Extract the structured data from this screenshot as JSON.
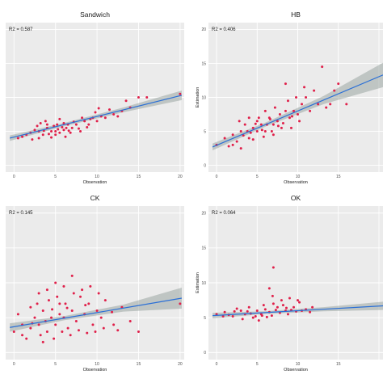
{
  "chart_data": [
    {
      "type": "scatter",
      "title": "Sandwich",
      "annotation": "R2 = 0.587",
      "xlabel": "Observation",
      "ylabel": "",
      "xlim": [
        -1,
        20.5
      ],
      "ylim": [
        -1,
        21
      ],
      "xticks": [
        "0",
        "5",
        "10",
        "15",
        "20"
      ],
      "yticks": [
        "0",
        "5",
        "10",
        "15",
        "20"
      ],
      "fit": {
        "x0": -0.5,
        "y0": 4.0,
        "x1": 20.2,
        "y1": 10.3
      },
      "band_halfwidth": [
        0.4,
        0.25,
        0.35,
        0.7
      ],
      "points": [
        [
          3,
          5
        ],
        [
          3.5,
          4.5
        ],
        [
          4,
          5.5
        ],
        [
          4.5,
          5
        ],
        [
          5,
          5
        ],
        [
          5.2,
          6
        ],
        [
          5.5,
          4.8
        ],
        [
          6,
          5.2
        ],
        [
          6.3,
          5.5
        ],
        [
          6.5,
          6
        ],
        [
          7,
          5.5
        ],
        [
          7.5,
          6
        ],
        [
          8,
          5
        ],
        [
          8.5,
          6.5
        ],
        [
          9,
          6
        ],
        [
          9.5,
          7
        ],
        [
          10,
          6.5
        ],
        [
          2,
          4.8
        ],
        [
          2.5,
          5.2
        ],
        [
          1,
          4.2
        ],
        [
          0.5,
          4
        ],
        [
          1.5,
          4.5
        ],
        [
          3.2,
          6.2
        ],
        [
          4.2,
          4.6
        ],
        [
          4.8,
          5.8
        ],
        [
          5.8,
          5.6
        ],
        [
          6.8,
          4.8
        ],
        [
          7.2,
          6.4
        ],
        [
          8.2,
          7
        ],
        [
          9.2,
          6.8
        ],
        [
          10.5,
          7.2
        ],
        [
          11,
          7
        ],
        [
          12,
          7.5
        ],
        [
          13,
          8
        ],
        [
          13.5,
          9.5
        ],
        [
          14,
          8.5
        ],
        [
          15,
          10
        ],
        [
          16,
          10
        ],
        [
          20,
          10.5
        ],
        [
          3.8,
          6.5
        ],
        [
          5.5,
          6.8
        ],
        [
          6.2,
          4.2
        ],
        [
          4.5,
          4.1
        ],
        [
          2.8,
          5.8
        ],
        [
          7.8,
          5.4
        ],
        [
          9.8,
          7.8
        ],
        [
          11.5,
          8.2
        ],
        [
          3,
          4
        ],
        [
          5,
          4.5
        ],
        [
          6,
          6.2
        ],
        [
          4,
          6
        ],
        [
          8.8,
          5.6
        ],
        [
          12.5,
          7.2
        ],
        [
          10.2,
          8.4
        ],
        [
          2.2,
          3.8
        ],
        [
          3.6,
          5.1
        ],
        [
          6.6,
          5.1
        ],
        [
          5.3,
          5.3
        ]
      ]
    },
    {
      "type": "scatter",
      "title": "HB",
      "annotation": "R2 = 0.406",
      "xlabel": "Observation",
      "ylabel": "Estimation",
      "xlim": [
        -1,
        20.5
      ],
      "ylim": [
        -1,
        21
      ],
      "xticks": [
        "0",
        "5",
        "10",
        "15"
      ],
      "yticks": [
        "0",
        "5",
        "10",
        "15",
        "20"
      ],
      "fit": {
        "x0": -0.5,
        "y0": 2.7,
        "x1": 20.5,
        "y1": 13.3
      },
      "band_halfwidth": [
        0.5,
        0.3,
        0.6,
        1.8
      ],
      "points": [
        [
          0,
          3
        ],
        [
          1,
          4
        ],
        [
          2,
          4.5
        ],
        [
          3,
          5
        ],
        [
          4,
          4
        ],
        [
          4.5,
          5.5
        ],
        [
          5,
          5
        ],
        [
          5.5,
          6
        ],
        [
          6,
          5
        ],
        [
          6.5,
          7
        ],
        [
          7,
          6
        ],
        [
          7.5,
          6.5
        ],
        [
          8,
          5.5
        ],
        [
          8.5,
          8
        ],
        [
          9,
          7
        ],
        [
          9.5,
          8
        ],
        [
          10,
          7.5
        ],
        [
          10.5,
          9
        ],
        [
          11,
          10
        ],
        [
          12,
          11
        ],
        [
          13,
          14.5
        ],
        [
          14,
          9
        ],
        [
          15,
          12
        ],
        [
          16,
          9
        ],
        [
          2.5,
          3.5
        ],
        [
          3.5,
          6
        ],
        [
          4.2,
          4.8
        ],
        [
          5.2,
          7
        ],
        [
          5.8,
          4.2
        ],
        [
          6.2,
          6
        ],
        [
          7.2,
          8.5
        ],
        [
          8.2,
          6.2
        ],
        [
          9.2,
          5.5
        ],
        [
          3,
          2.5
        ],
        [
          2,
          3
        ],
        [
          4,
          7
        ],
        [
          6.8,
          5
        ],
        [
          7.8,
          7.5
        ],
        [
          8.8,
          9.5
        ],
        [
          10.2,
          6.5
        ],
        [
          11.5,
          8
        ],
        [
          12.5,
          9
        ],
        [
          13.5,
          8.5
        ],
        [
          14.5,
          11
        ],
        [
          5,
          6.5
        ],
        [
          6,
          8
        ],
        [
          4.5,
          3.8
        ],
        [
          3.8,
          5
        ],
        [
          7,
          4.5
        ],
        [
          9.8,
          10
        ],
        [
          1.5,
          2.8
        ],
        [
          2.8,
          6.5
        ],
        [
          5.6,
          5.2
        ],
        [
          8.5,
          12
        ],
        [
          10.8,
          11.5
        ],
        [
          4.8,
          6.1
        ],
        [
          6.6,
          6.8
        ],
        [
          3.3,
          4.4
        ],
        [
          7.6,
          5.8
        ],
        [
          9.3,
          7.2
        ]
      ]
    },
    {
      "type": "scatter",
      "title": "CK",
      "annotation": "R2 = 0.145",
      "xlabel": "Observation",
      "ylabel": "",
      "xlim": [
        -1,
        20.5
      ],
      "ylim": [
        -1,
        21
      ],
      "xticks": [
        "0",
        "5",
        "10",
        "15",
        "20"
      ],
      "yticks": [
        "0",
        "5",
        "10",
        "15",
        "20"
      ],
      "fit": {
        "x0": -0.5,
        "y0": 3.6,
        "x1": 20.2,
        "y1": 7.8
      },
      "band_halfwidth": [
        0.6,
        0.3,
        0.5,
        1.5
      ],
      "points": [
        [
          0,
          3
        ],
        [
          1,
          4
        ],
        [
          2,
          3.5
        ],
        [
          2.5,
          5
        ],
        [
          3,
          4
        ],
        [
          3.5,
          6
        ],
        [
          4,
          3
        ],
        [
          4.5,
          5
        ],
        [
          5,
          4
        ],
        [
          5.5,
          7
        ],
        [
          6,
          5
        ],
        [
          6.5,
          3.5
        ],
        [
          7,
          6
        ],
        [
          7.5,
          4.5
        ],
        [
          8,
          8
        ],
        [
          8.5,
          5.5
        ],
        [
          9,
          7
        ],
        [
          9.5,
          4
        ],
        [
          10,
          6
        ],
        [
          10.5,
          5
        ],
        [
          11,
          7.5
        ],
        [
          12,
          4
        ],
        [
          13,
          6.5
        ],
        [
          14,
          4.5
        ],
        [
          15,
          3
        ],
        [
          20,
          7
        ],
        [
          3,
          8.5
        ],
        [
          4,
          9
        ],
        [
          5,
          10
        ],
        [
          6,
          9.5
        ],
        [
          7,
          11
        ],
        [
          2,
          6.5
        ],
        [
          1.5,
          2
        ],
        [
          3.2,
          2.5
        ],
        [
          4.8,
          2
        ],
        [
          5.8,
          3
        ],
        [
          6.8,
          2.5
        ],
        [
          7.8,
          3.2
        ],
        [
          8.8,
          2.8
        ],
        [
          9.8,
          3
        ],
        [
          10.8,
          3.5
        ],
        [
          2.8,
          7
        ],
        [
          4.2,
          7.5
        ],
        [
          5.2,
          8
        ],
        [
          6.2,
          7
        ],
        [
          7.2,
          8.5
        ],
        [
          8.2,
          9
        ],
        [
          9.2,
          9.5
        ],
        [
          0.5,
          5.5
        ],
        [
          1,
          2.5
        ],
        [
          2.2,
          4.2
        ],
        [
          3.8,
          4.5
        ],
        [
          4.6,
          6.2
        ],
        [
          6.4,
          6.4
        ],
        [
          8.6,
          6.8
        ],
        [
          10.2,
          8.5
        ],
        [
          11.8,
          5.8
        ],
        [
          12.5,
          3.2
        ],
        [
          3.5,
          1.5
        ],
        [
          5.5,
          5.5
        ]
      ]
    },
    {
      "type": "scatter",
      "title": "OK",
      "annotation": "R2 = 0.064",
      "xlabel": "Observation",
      "ylabel": "Estimation",
      "xlim": [
        -1,
        20.5
      ],
      "ylim": [
        -1,
        21
      ],
      "xticks": [
        "0",
        "5",
        "10",
        "15"
      ],
      "yticks": [
        "0",
        "5",
        "10",
        "15",
        "20"
      ],
      "fit": {
        "x0": -0.5,
        "y0": 5.3,
        "x1": 20.5,
        "y1": 6.7
      },
      "band_halfwidth": [
        0.4,
        0.2,
        0.3,
        0.6
      ],
      "points": [
        [
          0,
          5.5
        ],
        [
          1,
          5.8
        ],
        [
          2,
          5.2
        ],
        [
          3,
          6
        ],
        [
          3.5,
          5.5
        ],
        [
          4,
          6.5
        ],
        [
          4.5,
          5
        ],
        [
          5,
          6
        ],
        [
          5.5,
          5.5
        ],
        [
          6,
          6.2
        ],
        [
          6.5,
          5.8
        ],
        [
          7,
          7
        ],
        [
          7.5,
          6.5
        ],
        [
          8,
          7.5
        ],
        [
          8.5,
          6
        ],
        [
          9,
          7.8
        ],
        [
          9.5,
          6.5
        ],
        [
          10,
          7.5
        ],
        [
          10.5,
          6
        ],
        [
          11,
          6.2
        ],
        [
          11.5,
          5.8
        ],
        [
          7,
          12.2
        ],
        [
          6.5,
          9.2
        ],
        [
          3.2,
          4.8
        ],
        [
          5.2,
          4.6
        ],
        [
          6.8,
          5.3
        ],
        [
          8.8,
          5.5
        ],
        [
          2.5,
          6.3
        ],
        [
          4.8,
          5.2
        ],
        [
          7.8,
          5.7
        ],
        [
          9.8,
          5.9
        ],
        [
          1.5,
          5.4
        ],
        [
          5.8,
          6.8
        ],
        [
          8.2,
          6.8
        ],
        [
          10.2,
          7.2
        ],
        [
          3.8,
          5.9
        ],
        [
          6.2,
          5.1
        ],
        [
          9.2,
          6.1
        ],
        [
          4.2,
          5.6
        ],
        [
          7.3,
          6.1
        ],
        [
          0.8,
          5.2
        ],
        [
          2.2,
          5.9
        ],
        [
          11.8,
          6.5
        ],
        [
          6.9,
          8.1
        ],
        [
          5.6,
          5.3
        ],
        [
          8.6,
          6.4
        ]
      ]
    }
  ]
}
